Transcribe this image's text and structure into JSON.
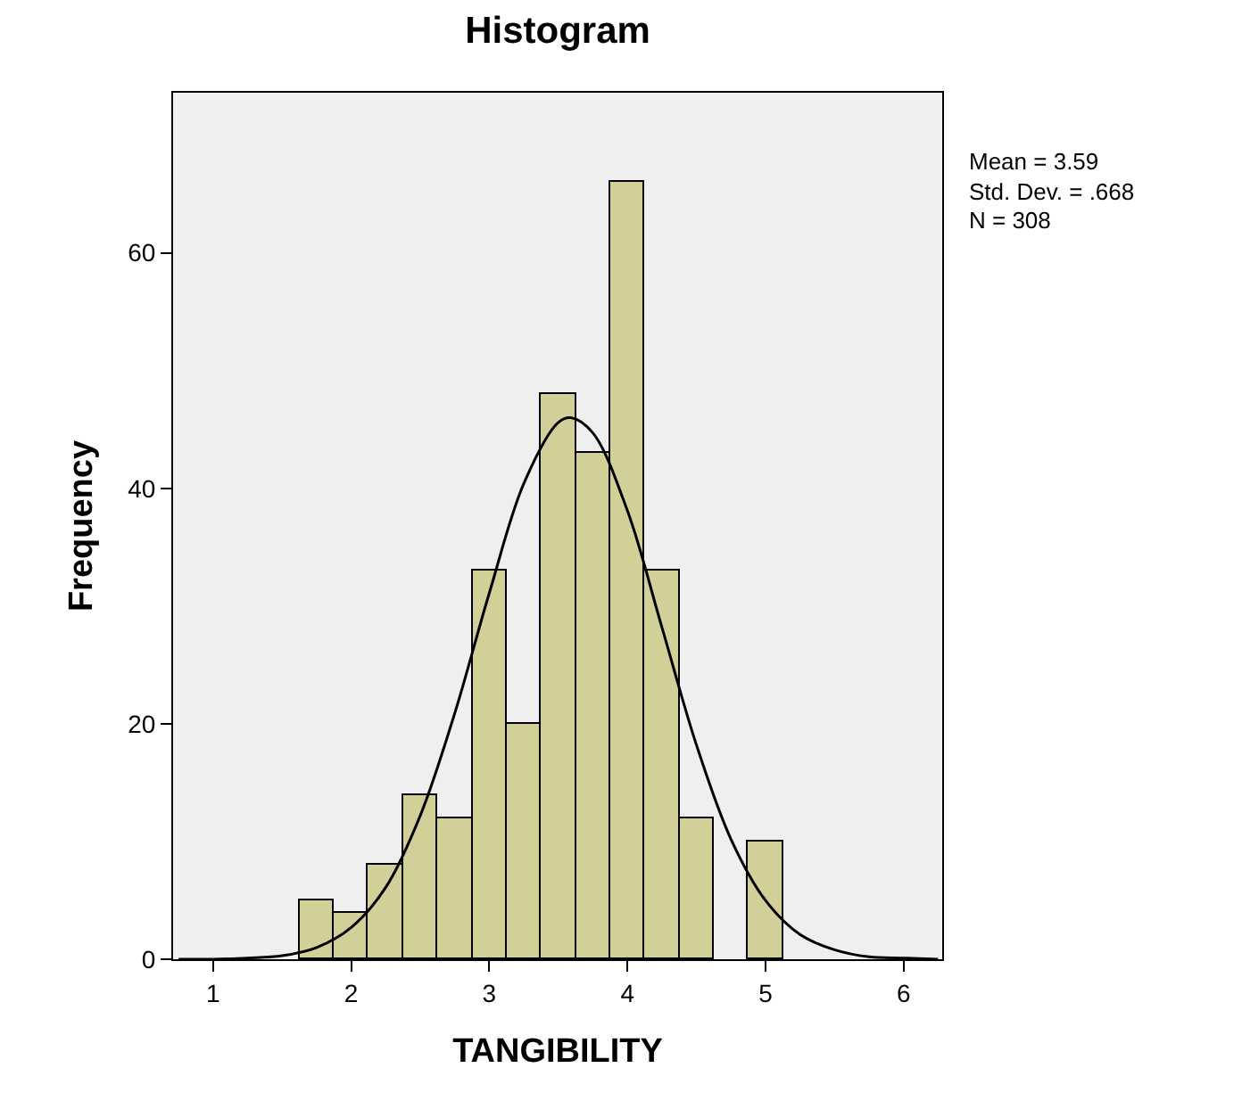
{
  "chart_data": {
    "type": "histogram",
    "title": "Histogram",
    "xlabel": "TANGIBILITY",
    "ylabel": "Frequency",
    "bins": [
      1.625,
      1.875,
      2.125,
      2.375,
      2.625,
      2.875,
      3.125,
      3.375,
      3.625,
      3.875,
      4.125,
      4.375,
      4.625,
      4.875,
      5.125
    ],
    "values": [
      5,
      4,
      8,
      14,
      12,
      33,
      20,
      48,
      43,
      66,
      33,
      12,
      0,
      10
    ],
    "color": "#d3cf99",
    "series": [
      {
        "type": "line",
        "color": "#000000",
        "x": [
          0.75,
          1.0,
          1.25,
          1.5,
          1.75,
          2.0,
          2.25,
          2.5,
          2.75,
          3.0,
          3.25,
          3.5,
          3.59,
          3.75,
          4.0,
          4.25,
          4.5,
          4.75,
          5.0,
          5.25,
          5.5,
          5.75,
          6.0,
          6.25
        ],
        "values": [
          0,
          0,
          0.1,
          0.3,
          1.0,
          2.7,
          6.1,
          12.2,
          20.9,
          31.1,
          40.4,
          45.6,
          46.0,
          44.7,
          38.1,
          28.2,
          18.2,
          10.2,
          5.0,
          2.1,
          0.8,
          0.2,
          0.1,
          0
        ]
      }
    ],
    "xlim": [
      0.71,
      6.28
    ],
    "xticks": [
      1,
      2,
      3,
      4,
      5,
      6
    ],
    "ylim": [
      0,
      73.6
    ],
    "yticks": [
      0,
      20,
      40,
      60
    ],
    "grid": false,
    "annotations": [
      "Mean = 3.59",
      "Std. Dev. = .668",
      "N = 308"
    ]
  }
}
